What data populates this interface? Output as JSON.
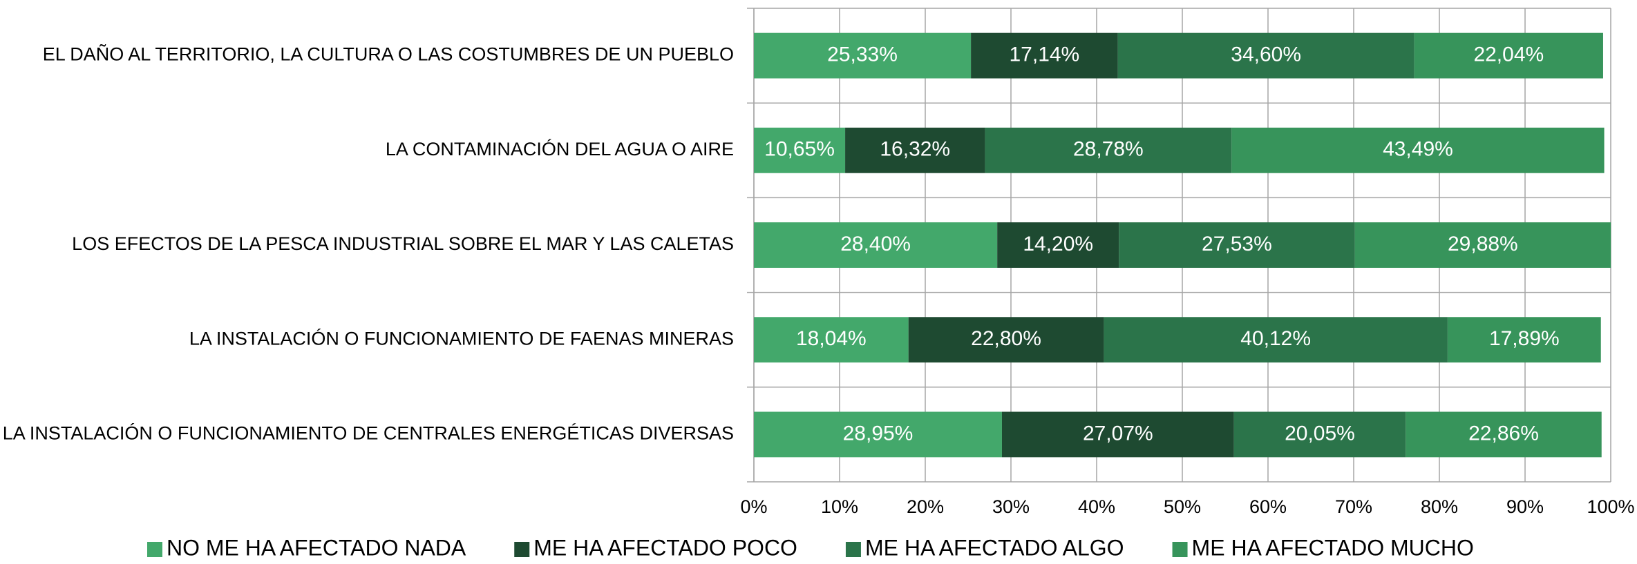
{
  "chart_data": {
    "type": "stacked-bar-horizontal",
    "categories": [
      "EL DAÑO AL TERRITORIO, LA CULTURA O LAS COSTUMBRES DE UN PUEBLO",
      "LA CONTAMINACIÓN DEL AGUA O AIRE",
      "LOS EFECTOS DE LA PESCA INDUSTRIAL SOBRE EL MAR Y LAS CALETAS",
      "LA INSTALACIÓN O FUNCIONAMIENTO DE FAENAS MINERAS",
      "LA INSTALACIÓN O FUNCIONAMIENTO DE CENTRALES ENERGÉTICAS DIVERSAS"
    ],
    "series": [
      {
        "name": "NO ME HA AFECTADO NADA",
        "color": "#43a86b",
        "values": [
          25.33,
          10.65,
          28.4,
          18.04,
          28.95
        ],
        "value_labels": [
          "25,33%",
          "10,65%",
          "28,40%",
          "18,04%",
          "28,95%"
        ]
      },
      {
        "name": "ME HA AFECTADO POCO",
        "color": "#1e4a31",
        "values": [
          17.14,
          16.32,
          14.2,
          22.8,
          27.07
        ],
        "value_labels": [
          "17,14%",
          "16,32%",
          "14,20%",
          "22,80%",
          "27,07%"
        ]
      },
      {
        "name": "ME HA AFECTADO ALGO",
        "color": "#2b744a",
        "values": [
          34.6,
          28.78,
          27.53,
          40.12,
          20.05
        ],
        "value_labels": [
          "34,60%",
          "28,78%",
          "27,53%",
          "40,12%",
          "20,05%"
        ]
      },
      {
        "name": "ME HA AFECTADO MUCHO",
        "color": "#37945b",
        "values": [
          22.04,
          43.49,
          29.88,
          17.89,
          22.86
        ],
        "value_labels": [
          "22,04%",
          "43,49%",
          "29,88%",
          "17,89%",
          "22,86%"
        ]
      }
    ],
    "xlim": [
      0,
      100
    ],
    "xticks": [
      {
        "value": 0,
        "label": "0%"
      },
      {
        "value": 10,
        "label": "10%"
      },
      {
        "value": 20,
        "label": "20%"
      },
      {
        "value": 30,
        "label": "30%"
      },
      {
        "value": 40,
        "label": "40%"
      },
      {
        "value": 50,
        "label": "50%"
      },
      {
        "value": 60,
        "label": "60%"
      },
      {
        "value": 70,
        "label": "70%"
      },
      {
        "value": 80,
        "label": "80%"
      },
      {
        "value": 90,
        "label": "90%"
      },
      {
        "value": 100,
        "label": "100%"
      }
    ],
    "grid": true,
    "legend": "bottom"
  }
}
